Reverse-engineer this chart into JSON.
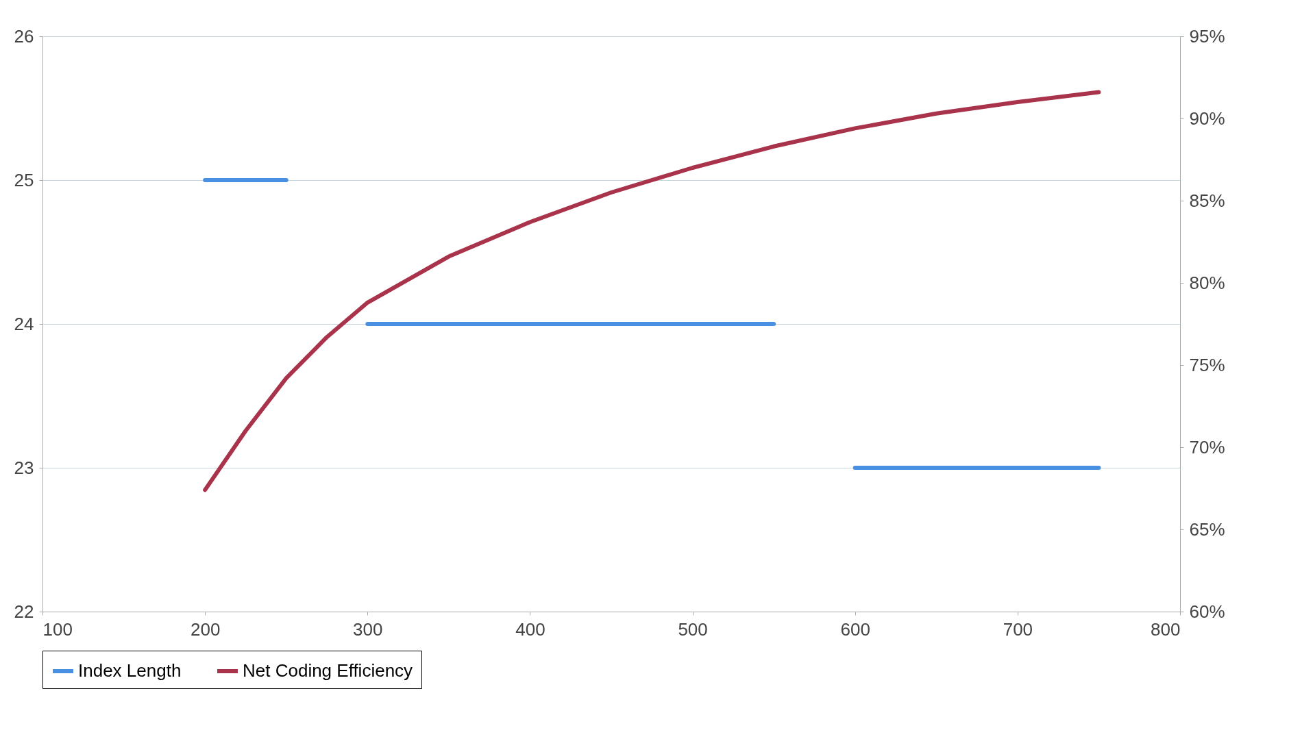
{
  "chart_data": {
    "type": "line",
    "xlim": [
      100,
      800
    ],
    "xticks": [
      100,
      200,
      300,
      400,
      500,
      600,
      700,
      800
    ],
    "ylim": [
      22,
      26
    ],
    "yticks": [
      22,
      23,
      24,
      25,
      26
    ],
    "y2lim": [
      60,
      95
    ],
    "y2ticks": [
      {
        "value": 60,
        "label": "60%"
      },
      {
        "value": 65,
        "label": "65%"
      },
      {
        "value": 70,
        "label": "70%"
      },
      {
        "value": 75,
        "label": "75%"
      },
      {
        "value": 80,
        "label": "80%"
      },
      {
        "value": 85,
        "label": "85%"
      },
      {
        "value": 90,
        "label": "90%"
      },
      {
        "value": 95,
        "label": "95%"
      }
    ],
    "grid": "y",
    "legend": "bottom",
    "line_style": "solid",
    "series": [
      {
        "name": "Index Length",
        "color": "#4a90e2",
        "x": [
          200,
          250,
          275,
          300,
          550,
          575,
          600,
          750
        ],
        "values": [
          25,
          25,
          null,
          24,
          24,
          null,
          23,
          23
        ]
      },
      {
        "name": "Net Coding Efficiency",
        "color": "#a8334a",
        "axis": "y2",
        "x": [
          200,
          225,
          250,
          275,
          300,
          350,
          400,
          450,
          500,
          550,
          600,
          650,
          700,
          750
        ],
        "values": [
          67.4,
          71,
          74.2,
          76.7,
          78.8,
          81.6,
          83.7,
          85.5,
          87.0,
          88.3,
          89.4,
          90.3,
          91.0,
          91.6
        ]
      }
    ]
  }
}
